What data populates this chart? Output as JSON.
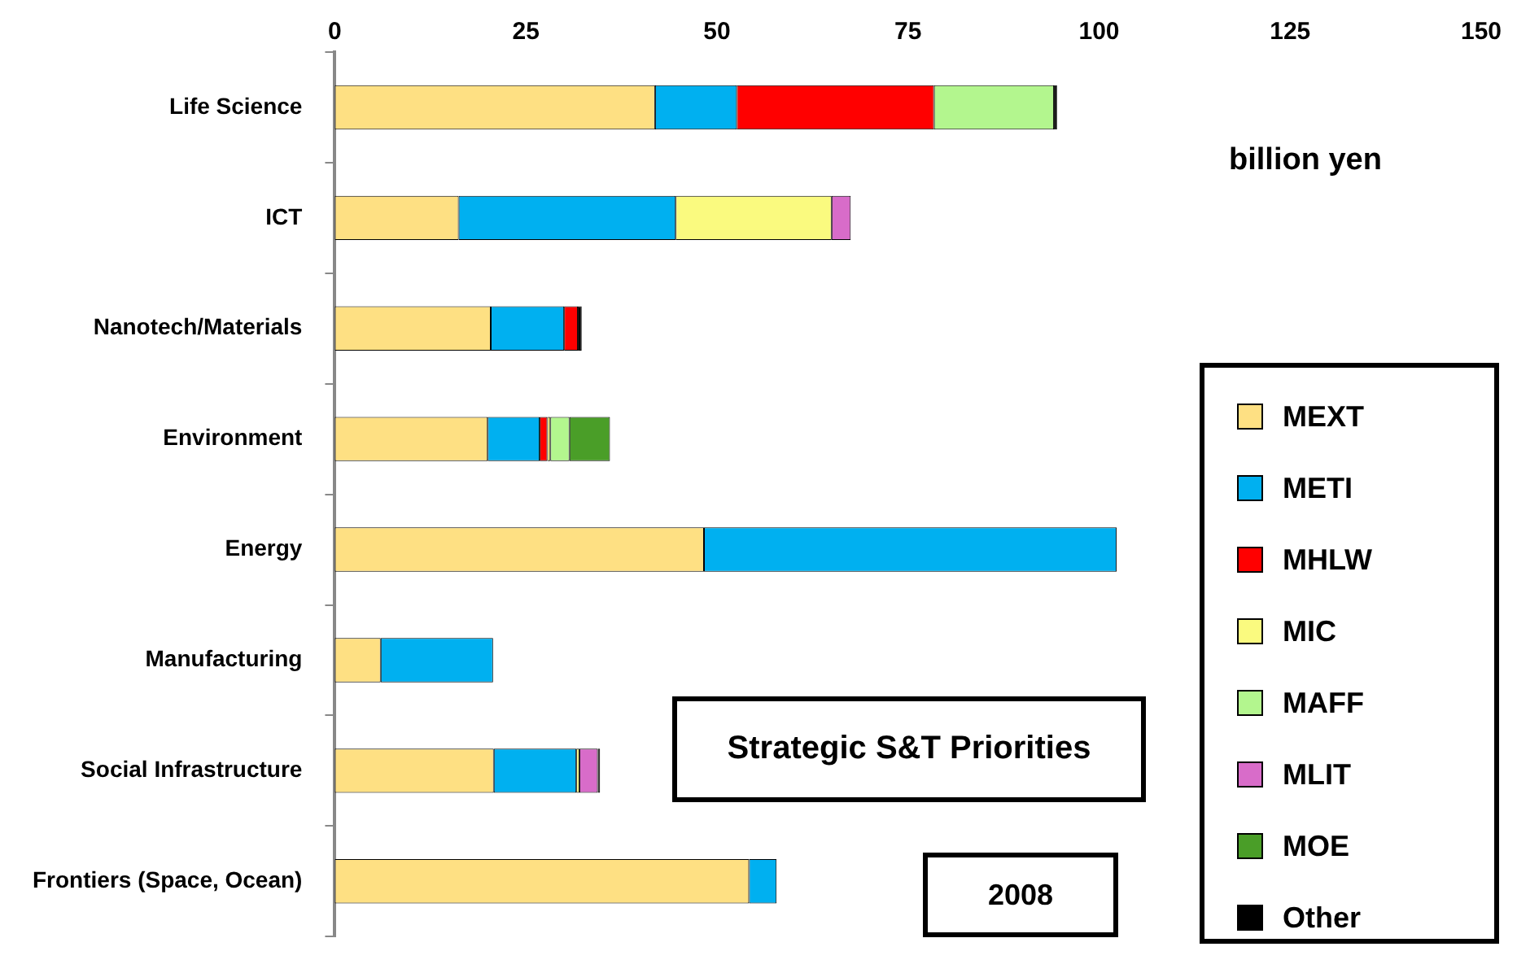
{
  "chart_data": {
    "type": "bar",
    "orientation": "horizontal",
    "stacked": true,
    "title": "Strategic S&T Priorities",
    "subtitle": "2008",
    "annotations": [
      "billion yen"
    ],
    "categories": [
      "Life Science",
      "ICT",
      "Nanotech/Materials",
      "Environment",
      "Energy",
      "Manufacturing",
      "Social Infrastructure",
      "Frontiers (Space, Ocean)"
    ],
    "xlim": [
      0,
      150
    ],
    "xticks": [
      0,
      25,
      50,
      75,
      100,
      125,
      150
    ],
    "grid": false,
    "legend": "bottom right",
    "series": [
      {
        "name": "MEXT",
        "color": "#fee083",
        "values": [
          41.9,
          16.2,
          20.4,
          20.0,
          48.3,
          6.0,
          20.8,
          54.2
        ]
      },
      {
        "name": "METI",
        "color": "#00b0f0",
        "values": [
          10.7,
          28.4,
          9.6,
          6.8,
          54.0,
          14.7,
          10.8,
          3.6
        ]
      },
      {
        "name": "MHLW",
        "color": "#ff0000",
        "values": [
          25.8,
          null,
          1.8,
          1.0,
          null,
          null,
          null,
          null
        ]
      },
      {
        "name": "MIC",
        "color": "#fafa7f",
        "values": [
          null,
          20.4,
          null,
          0.4,
          null,
          null,
          0.4,
          null
        ]
      },
      {
        "name": "MAFF",
        "color": "#b3f68e",
        "values": [
          15.7,
          null,
          null,
          2.5,
          null,
          null,
          null,
          null
        ]
      },
      {
        "name": "MLIT",
        "color": "#d86cc9",
        "values": [
          null,
          2.5,
          null,
          null,
          null,
          null,
          2.4,
          null
        ]
      },
      {
        "name": "MOE",
        "color": "#4a9e28",
        "values": [
          null,
          null,
          null,
          5.3,
          null,
          null,
          null,
          null
        ]
      },
      {
        "name": "Other",
        "color": "#000000",
        "values": [
          0.4,
          null,
          0.5,
          null,
          null,
          null,
          0.3,
          null
        ]
      }
    ]
  }
}
